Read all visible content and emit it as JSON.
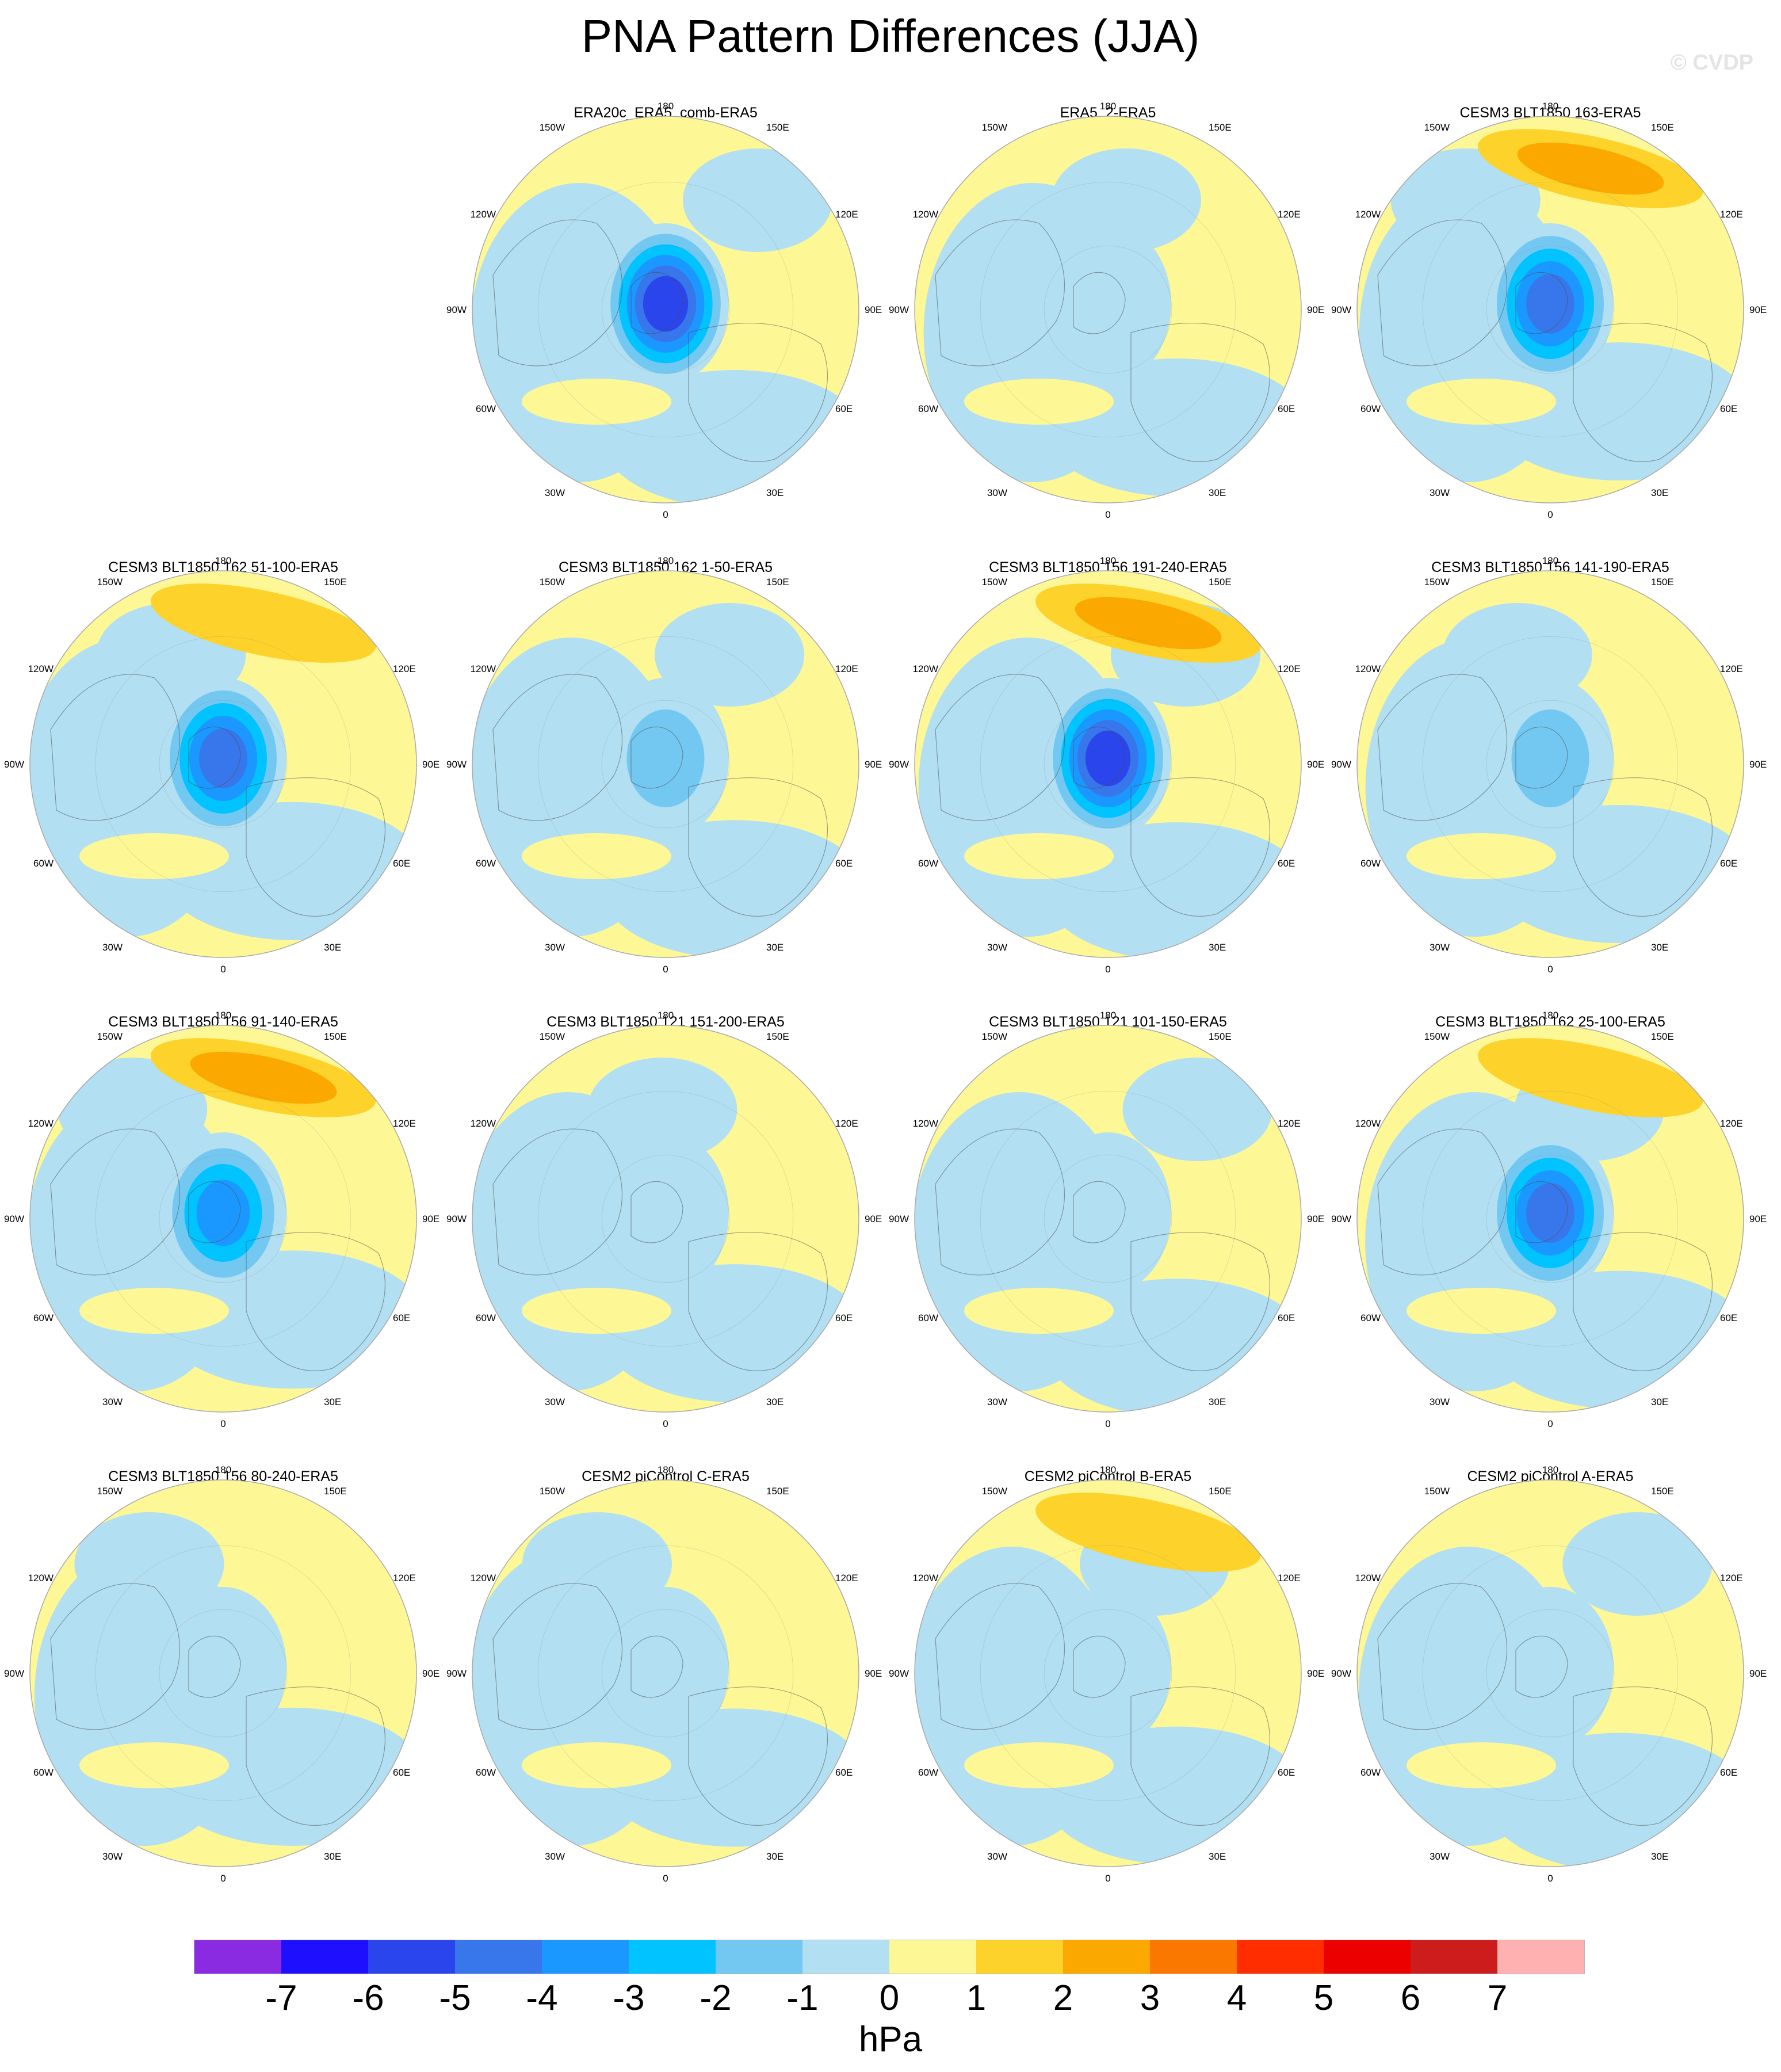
{
  "title": "PNA Pattern Differences (JJA)",
  "watermark": "© CVDP",
  "lon_labels": {
    "top": "180",
    "bottom": "0",
    "left": "90W",
    "right": "90E",
    "upper_left_1": "150W",
    "upper_left_2": "120W",
    "lower_left_1": "60W",
    "lower_left_2": "30W",
    "upper_right_1": "150E",
    "upper_right_2": "120E",
    "lower_right_1": "60E",
    "lower_right_2": "30E"
  },
  "panels": [
    {
      "title": "ERA20c_ERA5_comb-ERA5",
      "center_min": -6,
      "pacific_max": 0
    },
    {
      "title": "ERA5_2-ERA5",
      "center_min": -1,
      "pacific_max": 0
    },
    {
      "title": "CESM3 BLT1850 163-ERA5",
      "center_min": -5,
      "pacific_max": 2
    },
    {
      "title": "CESM3 BLT1850 162 51-100-ERA5",
      "center_min": -5,
      "pacific_max": 1
    },
    {
      "title": "CESM3 BLT1850 162 1-50-ERA5",
      "center_min": -2,
      "pacific_max": 0
    },
    {
      "title": "CESM3 BLT1850 156 191-240-ERA5",
      "center_min": -6,
      "pacific_max": 2
    },
    {
      "title": "CESM3 BLT1850 156 141-190-ERA5",
      "center_min": -2,
      "pacific_max": 0
    },
    {
      "title": "CESM3 BLT1850 156 91-140-ERA5",
      "center_min": -4,
      "pacific_max": 2
    },
    {
      "title": "CESM3 BLT1850 121 151-200-ERA5",
      "center_min": -1,
      "pacific_max": 0
    },
    {
      "title": "CESM3 BLT1850 121 101-150-ERA5",
      "center_min": -1,
      "pacific_max": 0
    },
    {
      "title": "CESM3 BLT1850 162 25-100-ERA5",
      "center_min": -5,
      "pacific_max": 1
    },
    {
      "title": "CESM3 BLT1850 156 80-240-ERA5",
      "center_min": -1,
      "pacific_max": 0
    },
    {
      "title": "CESM2 piControl C-ERA5",
      "center_min": -1,
      "pacific_max": 0
    },
    {
      "title": "CESM2 piControl B-ERA5",
      "center_min": -1,
      "pacific_max": 1
    },
    {
      "title": "CESM2 piControl A-ERA5",
      "center_min": -1,
      "pacific_max": 0
    }
  ],
  "colorbar": {
    "colors": [
      "#8a2be2",
      "#1e10ff",
      "#2a45ec",
      "#3877eb",
      "#1b98ff",
      "#00c3ff",
      "#73c8f2",
      "#b2dff1",
      "#fdf796",
      "#fdd22a",
      "#fba800",
      "#fb7800",
      "#ff2d00",
      "#ec0000",
      "#cc1c1c",
      "#ffb0b0"
    ],
    "ticks": [
      "-7",
      "-6",
      "-5",
      "-4",
      "-3",
      "-2",
      "-1",
      "0",
      "1",
      "2",
      "3",
      "4",
      "5",
      "6",
      "7"
    ],
    "units": "hPa"
  }
}
